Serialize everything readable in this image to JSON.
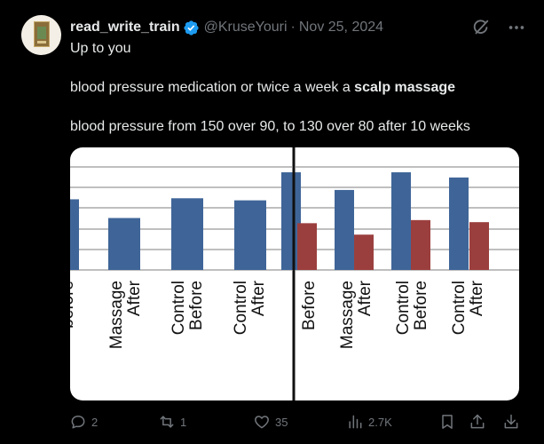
{
  "post": {
    "display_name": "read_write_train",
    "handle": "@KruseYouri",
    "separator": "·",
    "date": "Nov 25, 2024",
    "text_line1": "Up to you",
    "text_line2_prefix": "blood pressure medication or twice a week a ",
    "text_line2_bold": "scalp massage",
    "text_line3": "blood pressure from 150 over 90, to 130 over 80 after 10 weeks"
  },
  "icons": {
    "grok": "grok-icon",
    "more": "more-icon",
    "verified": "verified-badge-icon"
  },
  "colors": {
    "background": "#000000",
    "text": "#e7e9ea",
    "muted": "#71767b",
    "verified": "#1d9bf0",
    "bar_blue": "#3f6598",
    "bar_red": "#9b3f3e"
  },
  "chart_data": [
    {
      "type": "bar",
      "categories": [
        "before",
        "Massage After",
        "Control Before",
        "Control After"
      ],
      "tick_labels": [
        [
          "before"
        ],
        [
          "Massage",
          "After"
        ],
        [
          "Control",
          "Before"
        ],
        [
          "Control",
          "After"
        ]
      ],
      "values": [
        0.68,
        0.5,
        0.69,
        0.67
      ],
      "grid": true
    },
    {
      "type": "bar",
      "categories": [
        "Before",
        "Massage After",
        "Control Before",
        "Control After"
      ],
      "tick_labels": [
        [
          "Before"
        ],
        [
          "Massage",
          "After"
        ],
        [
          "Control",
          "Before"
        ],
        [
          "Control",
          "After"
        ]
      ],
      "series": [
        {
          "values": [
            0.94,
            0.77,
            0.94,
            0.89
          ]
        },
        {
          "values": [
            0.45,
            0.34,
            0.48,
            0.46
          ]
        }
      ],
      "grid": true
    }
  ],
  "actions": {
    "replies": "2",
    "reposts": "1",
    "likes": "35",
    "views": "2.7K"
  }
}
